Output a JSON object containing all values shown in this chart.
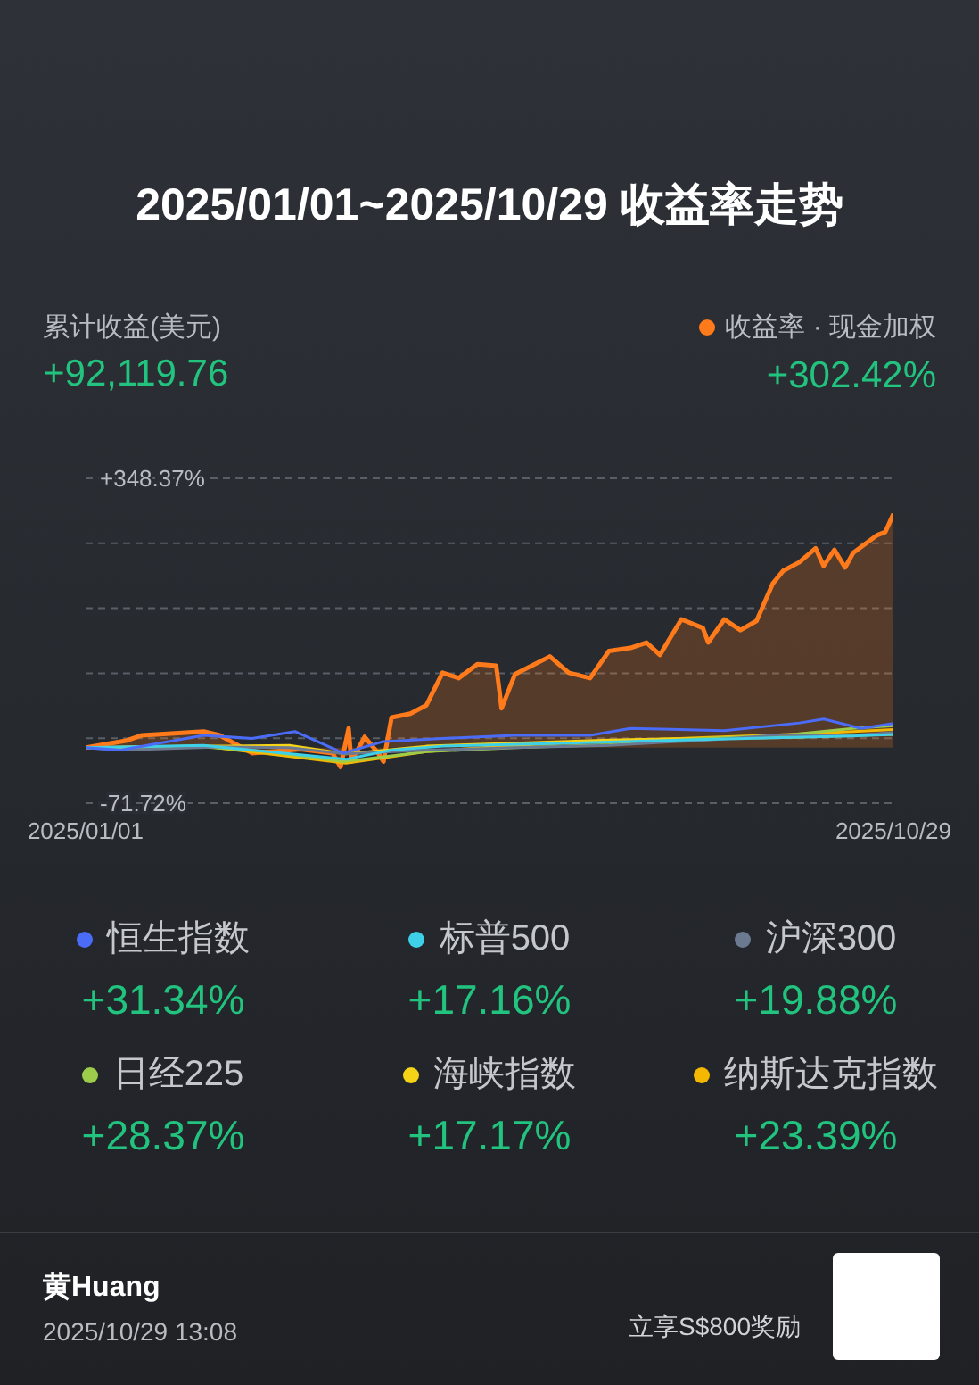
{
  "chart_data": {
    "type": "line",
    "title": "2025/01/01~2025/10/29 收益率走势",
    "annotations": [
      "累计收益(美元)",
      "+92,119.76",
      "黄Huang",
      "2025/10/29 13:08",
      "立享S$800奖励",
      "+302.42%",
      "+31.34%",
      "+17.16%",
      "+19.88%",
      "+28.37%",
      "+17.17%",
      "+23.39%"
    ],
    "xlim": [
      "2025-01-01",
      "2025-10-29"
    ],
    "xticks": [
      {
        "value": "2025-01-01",
        "label": "2025/01/01"
      },
      {
        "value": "2025-10-29",
        "label": "2025/10/29"
      }
    ],
    "ylim": [
      -71.72,
      348.37
    ],
    "yticks": [
      {
        "value": -71.72,
        "label": "-71.72%"
      },
      {
        "value": 12.29,
        "label": null
      },
      {
        "value": 96.31,
        "label": null
      },
      {
        "value": 180.33,
        "label": null
      },
      {
        "value": 264.35,
        "label": null
      },
      {
        "value": 348.37,
        "label": "+348.37%"
      }
    ],
    "grid": "y",
    "legend": "bottom",
    "marker": "none",
    "line_style": "solid",
    "series": [
      {
        "name": "收益率 · 现金加权",
        "type": "area",
        "color": "#ff7a1a",
        "x": [
          "2025-01-01",
          "2025-01-16",
          "2025-01-22",
          "2025-02-14",
          "2025-02-20",
          "2025-03-04",
          "2025-03-22",
          "2025-04-03",
          "2025-04-06",
          "2025-04-09",
          "2025-04-10",
          "2025-04-15",
          "2025-04-20",
          "2025-04-22",
          "2025-04-25",
          "2025-05-02",
          "2025-05-08",
          "2025-05-14",
          "2025-05-20",
          "2025-05-27",
          "2025-06-03",
          "2025-06-05",
          "2025-06-10",
          "2025-06-23",
          "2025-06-30",
          "2025-07-08",
          "2025-07-15",
          "2025-07-23",
          "2025-07-29",
          "2025-08-03",
          "2025-08-11",
          "2025-08-19",
          "2025-08-21",
          "2025-08-27",
          "2025-09-02",
          "2025-09-08",
          "2025-09-14",
          "2025-09-18",
          "2025-09-24",
          "2025-09-30",
          "2025-10-03",
          "2025-10-07",
          "2025-10-11",
          "2025-10-14",
          "2025-10-23",
          "2025-10-26",
          "2025-10-29"
        ],
        "values": [
          0,
          9,
          16,
          21,
          16,
          -7,
          -2,
          -7,
          -25,
          25,
          -18,
          14,
          -7,
          -18,
          39,
          44,
          55,
          97,
          90,
          108,
          106,
          51,
          95,
          118,
          97,
          90,
          125,
          129,
          136,
          120,
          166,
          155,
          136,
          166,
          152,
          164,
          212,
          229,
          240,
          258,
          235,
          256,
          233,
          252,
          275,
          279,
          302.42
        ]
      },
      {
        "name": "恒生指数",
        "color": "#4a6cf7",
        "x": [
          "2025-01-01",
          "2025-01-14",
          "2025-02-14",
          "2025-03-04",
          "2025-03-20",
          "2025-04-07",
          "2025-04-22",
          "2025-05-14",
          "2025-06-10",
          "2025-07-08",
          "2025-07-23",
          "2025-08-27",
          "2025-09-24",
          "2025-10-03",
          "2025-10-17",
          "2025-10-29"
        ],
        "values": [
          0,
          -3,
          16,
          12,
          21,
          -7,
          8,
          12,
          16,
          16,
          25,
          22,
          32,
          37,
          25,
          31.34
        ]
      },
      {
        "name": "标普500",
        "color": "#3dd0e8",
        "x": [
          "2025-01-01",
          "2025-02-14",
          "2025-03-10",
          "2025-04-08",
          "2025-04-25",
          "2025-05-14",
          "2025-06-30",
          "2025-08-11",
          "2025-09-18",
          "2025-10-14",
          "2025-10-29"
        ],
        "values": [
          0,
          3,
          -5,
          -15,
          -3,
          2,
          6,
          10,
          13,
          15,
          17.16
        ]
      },
      {
        "name": "沪深300",
        "color": "#6b7a90",
        "x": [
          "2025-01-01",
          "2025-01-14",
          "2025-02-20",
          "2025-03-18",
          "2025-04-08",
          "2025-05-08",
          "2025-06-10",
          "2025-07-15",
          "2025-08-21",
          "2025-09-18",
          "2025-10-14",
          "2025-10-29"
        ],
        "values": [
          0,
          -3,
          1,
          0,
          -8,
          -3,
          0,
          3,
          10,
          17,
          16,
          19.88
        ]
      },
      {
        "name": "日经225",
        "color": "#9ccc4a",
        "x": [
          "2025-01-01",
          "2025-02-14",
          "2025-03-10",
          "2025-04-07",
          "2025-05-08",
          "2025-06-10",
          "2025-07-15",
          "2025-08-19",
          "2025-09-18",
          "2025-10-14",
          "2025-10-29"
        ],
        "values": [
          0,
          1,
          -5,
          -18,
          -5,
          0,
          4,
          12,
          16,
          25,
          28.37
        ]
      },
      {
        "name": "海峡指数",
        "color": "#f5d418",
        "x": [
          "2025-01-01",
          "2025-02-14",
          "2025-03-18",
          "2025-04-08",
          "2025-05-08",
          "2025-06-10",
          "2025-07-15",
          "2025-08-19",
          "2025-09-18",
          "2025-10-14",
          "2025-10-29"
        ],
        "values": [
          0,
          2,
          3,
          -8,
          2,
          6,
          10,
          12,
          13,
          16,
          17.17
        ]
      },
      {
        "name": "纳斯达克指数",
        "color": "#f5b800",
        "x": [
          "2025-01-01",
          "2025-02-14",
          "2025-03-10",
          "2025-04-08",
          "2025-05-08",
          "2025-06-10",
          "2025-07-15",
          "2025-08-19",
          "2025-09-18",
          "2025-10-14",
          "2025-10-29"
        ],
        "values": [
          0,
          2,
          -8,
          -20,
          -5,
          3,
          9,
          13,
          17,
          21,
          23.39
        ]
      }
    ]
  }
}
